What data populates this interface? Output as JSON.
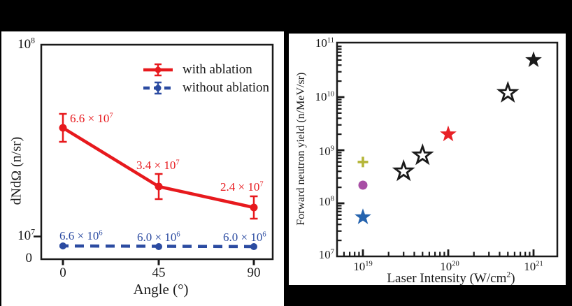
{
  "figure": {
    "background_color": "#000000",
    "panel_background": "#ffffff",
    "frame_color": "#1a1a1a"
  },
  "chart_data": [
    {
      "type": "line",
      "panel": "a",
      "title": "",
      "xlabel": "Angle (°)",
      "ylabel": "dNdΩ (n/sr)",
      "xticks": [
        "0",
        "45",
        "90"
      ],
      "yticks": [
        {
          "base": "10",
          "exp": "8"
        },
        {
          "base": "10",
          "exp": "7"
        },
        {
          "base": "0",
          "exp": ""
        }
      ],
      "x": [
        0,
        45,
        90
      ],
      "yscale": "log",
      "grid": false,
      "legend_position": "top-right",
      "series": [
        {
          "name": "with ablation",
          "color": "#e7191d",
          "line_style": "solid",
          "marker": "circle",
          "values": [
            66000000,
            34000000,
            24000000
          ],
          "yerr": [
            12000000,
            5000000,
            4000000
          ],
          "point_labels": [
            {
              "coef": "6.6 × 10",
              "exp": "7"
            },
            {
              "coef": "3.4 × 10",
              "exp": "7"
            },
            {
              "coef": "2.4 × 10",
              "exp": "7"
            }
          ]
        },
        {
          "name": "without ablation",
          "color": "#2b4ba1",
          "line_style": "dashed",
          "marker": "circle",
          "values": [
            6600000,
            6000000,
            6000000
          ],
          "point_labels": [
            {
              "coef": "6.6 × 10",
              "exp": "6"
            },
            {
              "coef": "6.0 × 10",
              "exp": "6"
            },
            {
              "coef": "6.0 × 10",
              "exp": "6"
            }
          ]
        }
      ]
    },
    {
      "type": "scatter",
      "panel": "b",
      "title": "",
      "xlabel_parts": {
        "pre": "Laser Intensity (W/cm",
        "exp": "2",
        "post": ")"
      },
      "ylabel": "Forward neutron yield (n/MeV/sr)",
      "xscale": "log",
      "yscale": "log",
      "xlim": [
        5e+18,
        2e+21
      ],
      "ylim": [
        10000000.0,
        110000000000.0
      ],
      "grid": false,
      "xticks": [
        {
          "base": "10",
          "exp": "19"
        },
        {
          "base": "10",
          "exp": "20"
        },
        {
          "base": "10",
          "exp": "21"
        }
      ],
      "yticks": [
        {
          "base": "10",
          "exp": "11"
        },
        {
          "base": "10",
          "exp": "10"
        },
        {
          "base": "10",
          "exp": "9"
        },
        {
          "base": "10",
          "exp": "8"
        },
        {
          "base": "10",
          "exp": "7"
        }
      ],
      "points": [
        {
          "x": 1e+19,
          "y": 55000000.0,
          "marker": "star-filled",
          "color": "#2563ae"
        },
        {
          "x": 1e+19,
          "y": 220000000.0,
          "marker": "circle-filled",
          "color": "#a84fa5"
        },
        {
          "x": 1e+19,
          "y": 600000000.0,
          "marker": "plus",
          "color": "#b5b639"
        },
        {
          "x": 3e+19,
          "y": 400000000.0,
          "marker": "star-open",
          "color": "#1a1a1a"
        },
        {
          "x": 5e+19,
          "y": 800000000.0,
          "marker": "star-open",
          "color": "#1a1a1a"
        },
        {
          "x": 1e+20,
          "y": 2000000000.0,
          "marker": "star-filled",
          "color": "#e82127"
        },
        {
          "x": 5e+20,
          "y": 12000000000.0,
          "marker": "star-open",
          "color": "#1a1a1a"
        },
        {
          "x": 1e+21,
          "y": 50000000000.0,
          "marker": "star-filled",
          "color": "#1a1a1a"
        }
      ]
    }
  ]
}
